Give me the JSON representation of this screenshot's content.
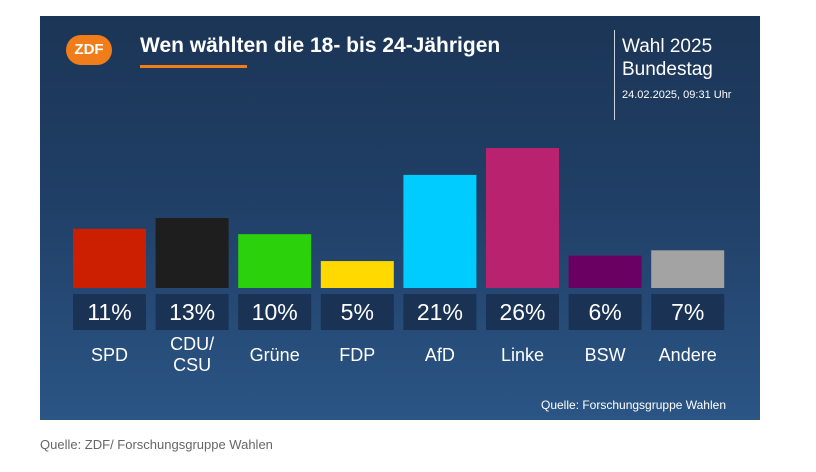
{
  "header": {
    "logo": "ZDF",
    "title": "Wen wählten die 18- bis 24-Jährigen",
    "election_line1": "Wahl 2025",
    "election_line2": "Bundestag",
    "timestamp": "24.02.2025, 09:31 Uhr"
  },
  "source_inner": "Quelle: Forschungsgruppe Wahlen",
  "footer_source": "Quelle: ZDF/ Forschungsgruppe Wahlen",
  "chart_data": {
    "type": "bar",
    "title": "Wen wählten die 18- bis 24-Jährigen",
    "categories": [
      "SPD",
      "CDU/\nCSU",
      "Grüne",
      "FDP",
      "AfD",
      "Linke",
      "BSW",
      "Andere"
    ],
    "values": [
      11,
      13,
      10,
      5,
      21,
      26,
      6,
      7
    ],
    "value_labels": [
      "11%",
      "13%",
      "10%",
      "5%",
      "21%",
      "26%",
      "6%",
      "7%"
    ],
    "colors": [
      "#cc1e00",
      "#1e1e1e",
      "#2bd10a",
      "#ffd900",
      "#00ccff",
      "#b8226e",
      "#6b0063",
      "#a3a3a3"
    ],
    "unit": "%",
    "xlabel": "",
    "ylabel": "",
    "ylim": [
      0,
      26
    ],
    "grid": false,
    "legend": "none"
  }
}
